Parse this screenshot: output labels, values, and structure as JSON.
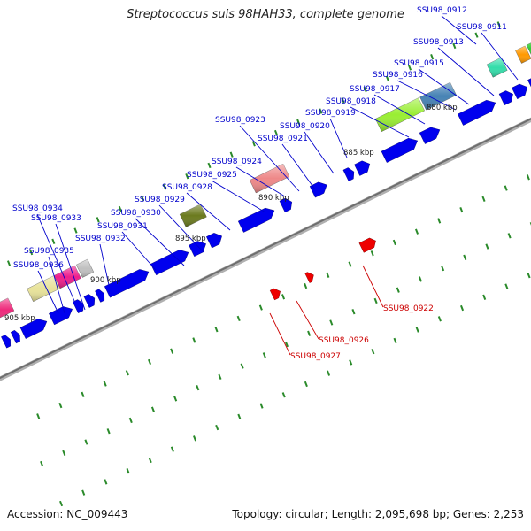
{
  "title": "Streptococcus suis 98HAH33, complete genome",
  "footer": {
    "accession": "Accession: NC_009443",
    "summary": "Topology: circular; Length: 2,095,698 bp; Genes: 2,253"
  },
  "colors": {
    "backbone": "#888888",
    "gene_blue": "#0000ee",
    "gene_red": "#ee0000",
    "tick_green": "#2a8a2a",
    "label_blue": "#0000cc",
    "label_red": "#cc0000"
  },
  "kbp_labels": [
    "880 kbp",
    "885 kbp",
    "890 kbp",
    "895 kbp",
    "900 kbp",
    "905 kbp"
  ],
  "top_labels": [
    "SSU98_0912",
    "SSU98_0911",
    "SSU98_0913",
    "SSU98_0915",
    "SSU98_0916",
    "SSU98_0917",
    "SSU98_0918",
    "SSU98_0919",
    "SSU98_0923",
    "SSU98_0920",
    "SSU98_0921",
    "SSU98_0924",
    "SSU98_0925",
    "SSU98_0928",
    "SSU98_0929",
    "SSU98_0930",
    "SSU98_0931",
    "SSU98_0932",
    "SSU98_0934",
    "SSU98_0933",
    "SSU98_0935",
    "SSU98_0936"
  ],
  "bottom_labels": [
    "SSU98_0922",
    "SSU98_0926",
    "SSU98_0927"
  ]
}
